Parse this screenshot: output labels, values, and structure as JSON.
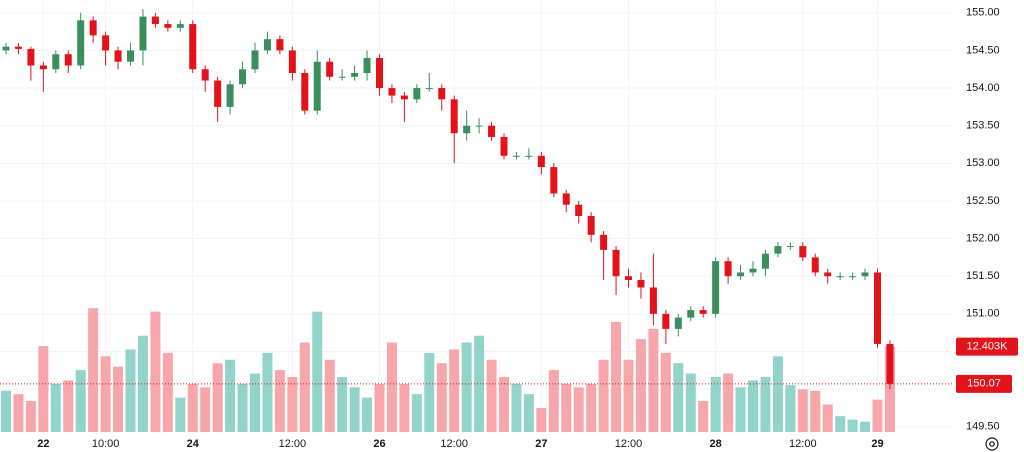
{
  "chart_data": {
    "type": "candlestick",
    "categories": [
      null,
      null,
      null,
      "22",
      null,
      null,
      null,
      null,
      "10:00",
      null,
      null,
      null,
      null,
      null,
      null,
      "24",
      null,
      null,
      null,
      null,
      null,
      null,
      null,
      "12:00",
      null,
      null,
      null,
      null,
      null,
      null,
      "26",
      null,
      null,
      null,
      null,
      null,
      "12:00",
      null,
      null,
      null,
      null,
      null,
      null,
      "27",
      null,
      null,
      null,
      null,
      null,
      null,
      "12:00",
      null,
      null,
      null,
      null,
      null,
      null,
      "28",
      null,
      null,
      null,
      null,
      null,
      null,
      "12:00",
      null,
      null,
      null,
      null,
      null,
      "29",
      null
    ],
    "open": [
      154.5,
      154.55,
      154.52,
      154.3,
      154.25,
      154.45,
      154.3,
      154.9,
      154.7,
      154.5,
      154.35,
      154.5,
      154.95,
      154.85,
      154.8,
      154.85,
      154.25,
      154.1,
      153.75,
      154.05,
      154.25,
      154.5,
      154.65,
      154.5,
      154.2,
      153.7,
      154.35,
      154.15,
      154.15,
      154.2,
      154.4,
      154.0,
      153.9,
      153.85,
      154.0,
      154.0,
      153.85,
      153.4,
      153.5,
      153.5,
      153.35,
      153.1,
      153.1,
      153.1,
      152.95,
      152.6,
      152.45,
      152.3,
      152.05,
      151.85,
      151.5,
      151.45,
      151.35,
      151.0,
      150.8,
      150.95,
      151.05,
      151.0,
      151.7,
      151.5,
      151.55,
      151.6,
      151.8,
      151.9,
      151.9,
      151.75,
      151.55,
      151.5,
      151.5,
      151.5,
      151.55,
      150.6
    ],
    "high": [
      154.6,
      154.6,
      154.55,
      154.35,
      154.5,
      154.5,
      155.0,
      154.95,
      154.75,
      154.55,
      154.6,
      155.05,
      155.0,
      154.9,
      154.9,
      154.9,
      154.3,
      154.15,
      154.1,
      154.35,
      154.6,
      154.75,
      154.7,
      154.55,
      154.25,
      154.5,
      154.4,
      154.25,
      154.3,
      154.5,
      154.45,
      154.05,
      153.95,
      154.05,
      154.2,
      154.05,
      153.9,
      153.7,
      153.6,
      153.55,
      153.4,
      153.15,
      153.2,
      153.15,
      153.0,
      152.65,
      152.5,
      152.35,
      152.1,
      151.9,
      151.6,
      151.55,
      151.8,
      151.05,
      151.0,
      151.1,
      151.1,
      151.75,
      151.75,
      151.65,
      151.7,
      151.85,
      151.95,
      151.95,
      151.95,
      151.8,
      151.6,
      151.55,
      151.55,
      151.6,
      151.6,
      150.65
    ],
    "low": [
      154.45,
      154.45,
      154.1,
      153.95,
      154.2,
      154.2,
      154.25,
      154.6,
      154.3,
      154.25,
      154.3,
      154.3,
      154.8,
      154.75,
      154.75,
      154.2,
      153.95,
      153.55,
      153.65,
      154.0,
      154.2,
      154.45,
      154.45,
      154.1,
      153.65,
      153.65,
      154.1,
      154.1,
      154.1,
      154.1,
      153.9,
      153.8,
      153.55,
      153.8,
      153.95,
      153.7,
      153.0,
      153.3,
      153.4,
      153.3,
      153.05,
      153.05,
      153.05,
      152.85,
      152.55,
      152.35,
      152.2,
      151.95,
      151.45,
      151.25,
      151.35,
      151.2,
      150.85,
      150.6,
      150.7,
      150.9,
      150.95,
      150.95,
      151.4,
      151.45,
      151.5,
      151.5,
      151.75,
      151.85,
      151.7,
      151.5,
      151.4,
      151.45,
      151.45,
      151.45,
      150.55,
      150.0
    ],
    "close": [
      154.55,
      154.52,
      154.3,
      154.25,
      154.45,
      154.3,
      154.9,
      154.7,
      154.5,
      154.35,
      154.5,
      154.95,
      154.85,
      154.8,
      154.85,
      154.25,
      154.1,
      153.75,
      154.05,
      154.25,
      154.5,
      154.65,
      154.5,
      154.2,
      153.7,
      154.35,
      154.15,
      154.15,
      154.2,
      154.4,
      154.0,
      153.9,
      153.85,
      154.0,
      154.0,
      153.85,
      153.4,
      153.5,
      153.5,
      153.35,
      153.1,
      153.1,
      153.1,
      152.95,
      152.6,
      152.45,
      152.3,
      152.05,
      151.85,
      151.5,
      151.45,
      151.35,
      151.0,
      150.8,
      150.95,
      151.05,
      151.0,
      151.7,
      151.5,
      151.55,
      151.6,
      151.8,
      151.9,
      151.9,
      151.75,
      151.55,
      151.5,
      151.5,
      151.5,
      151.55,
      150.6,
      150.07
    ],
    "volume": {
      "values": [
        6000,
        5500,
        4500,
        12500,
        7000,
        7500,
        9000,
        18000,
        11000,
        9500,
        12000,
        14000,
        17500,
        11500,
        5000,
        7000,
        6500,
        10000,
        10500,
        7000,
        8500,
        11500,
        9000,
        8000,
        13000,
        17500,
        10500,
        8000,
        6500,
        5000,
        7000,
        13000,
        7000,
        5500,
        11500,
        10000,
        12000,
        13000,
        14000,
        10500,
        8000,
        7000,
        5500,
        3500,
        9000,
        7000,
        6500,
        7000,
        10500,
        16000,
        10500,
        13500,
        15000,
        11500,
        10000,
        8500,
        4500,
        8000,
        8500,
        6500,
        7500,
        8000,
        11000,
        6800,
        6200,
        6000,
        4000,
        2300,
        1800,
        1500,
        4700,
        12403
      ],
      "value_labels": [
        null,
        null,
        null,
        null,
        null,
        null,
        null,
        null,
        null,
        null,
        null,
        null,
        null,
        null,
        null,
        null,
        null,
        null,
        null,
        null,
        null,
        null,
        null,
        null,
        null,
        null,
        null,
        null,
        null,
        null,
        null,
        null,
        null,
        null,
        null,
        null,
        null,
        null,
        null,
        null,
        null,
        null,
        null,
        null,
        null,
        null,
        null,
        null,
        null,
        null,
        null,
        null,
        null,
        null,
        null,
        null,
        null,
        null,
        null,
        null,
        null,
        null,
        null,
        null,
        null,
        null,
        null,
        null,
        null,
        null,
        null,
        "12.403K"
      ],
      "ylim": [
        0,
        62800
      ]
    },
    "ylim": [
      149.43,
      155.17
    ],
    "yticks": [
      {
        "value": 149.5,
        "label": "149.50"
      },
      {
        "value": 150.0,
        "label": "150.00"
      },
      {
        "value": 150.5,
        "label": "150.50"
      },
      {
        "value": 151.0,
        "label": "151.00"
      },
      {
        "value": 151.5,
        "label": "151.50"
      },
      {
        "value": 152.0,
        "label": "152.00"
      },
      {
        "value": 152.5,
        "label": "152.50"
      },
      {
        "value": 153.0,
        "label": "153.00"
      },
      {
        "value": 153.5,
        "label": "153.50"
      },
      {
        "value": 154.0,
        "label": "154.00"
      },
      {
        "value": 154.5,
        "label": "154.50"
      },
      {
        "value": 155.0,
        "label": "155.00"
      }
    ],
    "grid": true,
    "up_color": "#3a8f5c",
    "down_color": "#e3131b",
    "volume_up_color": "#92d4c9",
    "volume_down_color": "#f7a6ab",
    "last_price_color": "#e3131b"
  }
}
